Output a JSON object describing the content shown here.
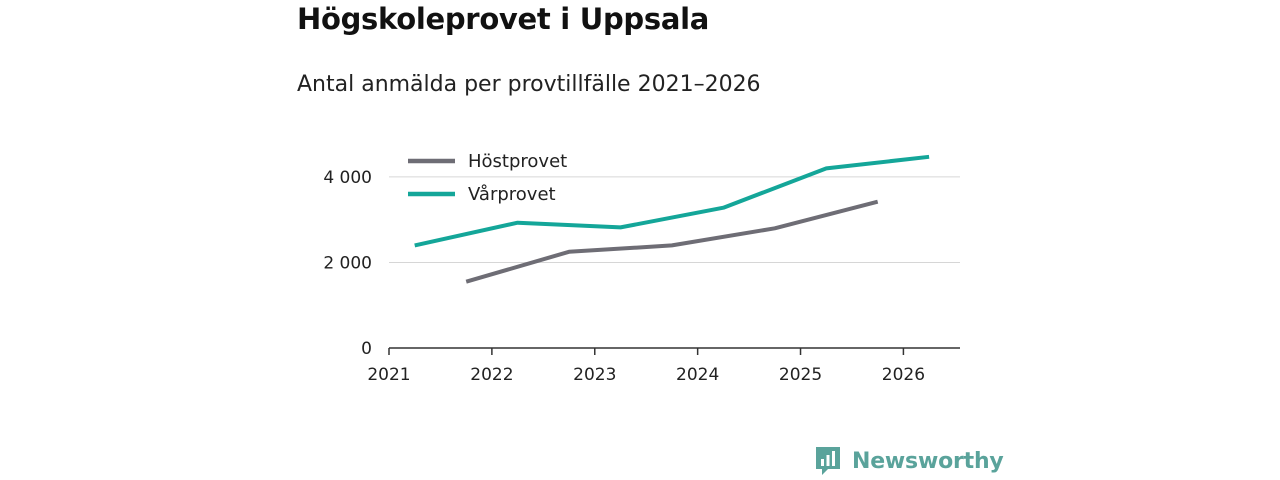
{
  "header": {
    "title": "Högskoleprovet i Uppsala",
    "subtitle": "Antal anmälda per provtillfälle 2021–2026"
  },
  "brand": {
    "name": "Newsworthy",
    "logo_icon": "bar-chart-icon",
    "color": "#5aa39b"
  },
  "chart_data": {
    "type": "line",
    "title": "Högskoleprovet i Uppsala",
    "subtitle": "Antal anmälda per provtillfälle 2021–2026",
    "xlabel": "",
    "ylabel": "",
    "xlim": [
      2021,
      2026.55
    ],
    "ylim": [
      0,
      4700
    ],
    "x_ticks": [
      2021,
      2022,
      2023,
      2024,
      2025,
      2026
    ],
    "x_tick_labels": [
      "2021",
      "2022",
      "2023",
      "2024",
      "2025",
      "2026"
    ],
    "y_ticks": [
      0,
      2000,
      4000
    ],
    "y_tick_labels": [
      "0",
      "2 000",
      "4 000"
    ],
    "grid": true,
    "legend_position": "top-left",
    "series": [
      {
        "name": "Höstprovet",
        "color": "#6e6d75",
        "x": [
          2021.75,
          2022.75,
          2023.75,
          2024.75,
          2025.75
        ],
        "values": [
          1550,
          2250,
          2400,
          2800,
          3420
        ]
      },
      {
        "name": "Vårprovet",
        "color": "#14a699",
        "x": [
          2021.25,
          2022.25,
          2023.25,
          2024.25,
          2025.25,
          2026.25
        ],
        "values": [
          2400,
          2930,
          2820,
          3280,
          4200,
          4470
        ]
      }
    ]
  }
}
